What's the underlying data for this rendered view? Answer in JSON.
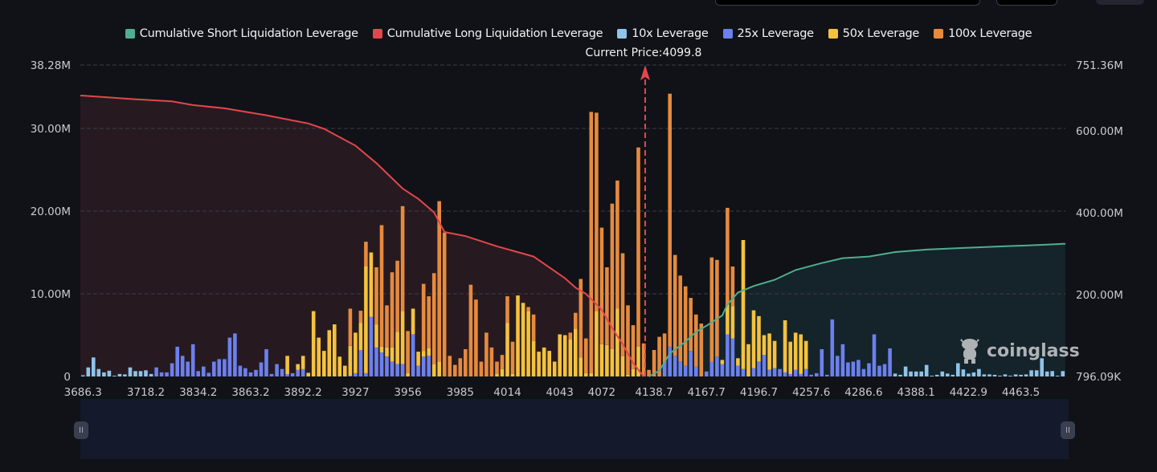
{
  "legend": [
    {
      "label": "Cumulative Short Liquidation Leverage",
      "color": "#4fae8f"
    },
    {
      "label": "Cumulative Long Liquidation Leverage",
      "color": "#e3474b"
    },
    {
      "label": "10x Leverage",
      "color": "#8ec3ea"
    },
    {
      "label": "25x Leverage",
      "color": "#6c80ee"
    },
    {
      "label": "50x Leverage",
      "color": "#f4c23e"
    },
    {
      "label": "100x Leverage",
      "color": "#e68a3e"
    }
  ],
  "current_price_label": "Current Price:4099.8",
  "watermark": "coinglass",
  "slider": {
    "handle_left": "II",
    "handle_right": "II"
  },
  "chart_data": {
    "type": "bar",
    "stacked": true,
    "grid": true,
    "legend_position": "top",
    "current_price": 4099.8,
    "xtick_labels": [
      "3686.3",
      "3718.2",
      "3834.2",
      "3863.2",
      "3892.2",
      "3927",
      "3956",
      "3985",
      "4014",
      "4043",
      "4072",
      "4138.7",
      "4167.7",
      "4196.7",
      "4257.6",
      "4286.6",
      "4388.1",
      "4422.9",
      "4463.5"
    ],
    "y_left": {
      "ticks": [
        0,
        10,
        20,
        30,
        38.28
      ],
      "tick_labels": [
        "0",
        "10.00M",
        "20.00M",
        "30.00M",
        "38.28M"
      ],
      "unit": "M",
      "range": [
        0,
        38.28
      ]
    },
    "y_right": {
      "ticks": [
        0.796,
        200,
        400,
        600,
        751.36
      ],
      "tick_labels": [
        "796.09K",
        "200.00M",
        "400.00M",
        "600.00M",
        "751.36M"
      ],
      "unit": "M",
      "range": [
        0.796,
        751.36
      ]
    },
    "stack_order": [
      "10x Leverage",
      "25x Leverage",
      "50x Leverage",
      "100x Leverage"
    ],
    "bars": [
      [
        0.15,
        0,
        0,
        0
      ],
      [
        1.1,
        0,
        0,
        0
      ],
      [
        2.3,
        0,
        0,
        0
      ],
      [
        0.9,
        0,
        0,
        0
      ],
      [
        0.5,
        0,
        0,
        0
      ],
      [
        0.7,
        0,
        0,
        0
      ],
      [
        0.1,
        0,
        0,
        0
      ],
      [
        0.3,
        0,
        0,
        0
      ],
      [
        0.25,
        0,
        0,
        0
      ],
      [
        1.1,
        0,
        0,
        0
      ],
      [
        0.65,
        0,
        0,
        0
      ],
      [
        0.65,
        0,
        0,
        0
      ],
      [
        0.75,
        0,
        0,
        0
      ],
      [
        0.3,
        0,
        0,
        0
      ],
      [
        0,
        1.1,
        0,
        0
      ],
      [
        0,
        0.5,
        0,
        0
      ],
      [
        0,
        0.5,
        0,
        0
      ],
      [
        0,
        1.6,
        0,
        0
      ],
      [
        0,
        3.6,
        0,
        0
      ],
      [
        0,
        2.5,
        0,
        0
      ],
      [
        0,
        1.8,
        0,
        0
      ],
      [
        0,
        3.9,
        0,
        0
      ],
      [
        0,
        0.65,
        0,
        0
      ],
      [
        0,
        1.2,
        0,
        0
      ],
      [
        0,
        0.45,
        0,
        0
      ],
      [
        0,
        1.8,
        0,
        0
      ],
      [
        0,
        2.1,
        0,
        0
      ],
      [
        0,
        2.1,
        0,
        0
      ],
      [
        0,
        4.7,
        0,
        0
      ],
      [
        0,
        5.2,
        0,
        0
      ],
      [
        0,
        1.3,
        0,
        0
      ],
      [
        0,
        1.0,
        0,
        0
      ],
      [
        0,
        0.5,
        0,
        0
      ],
      [
        0,
        0.8,
        0,
        0
      ],
      [
        0,
        1.7,
        0,
        0
      ],
      [
        0,
        3.3,
        0,
        0
      ],
      [
        0,
        0.3,
        0,
        0
      ],
      [
        0,
        1.5,
        0,
        0
      ],
      [
        0,
        0.9,
        0,
        0
      ],
      [
        0,
        0.3,
        2.2,
        0
      ],
      [
        0,
        0.4,
        0,
        0
      ],
      [
        0,
        0.8,
        0.7,
        0
      ],
      [
        0,
        0.9,
        1.6,
        0
      ],
      [
        0,
        0,
        0.45,
        0
      ],
      [
        0,
        0,
        7.9,
        0
      ],
      [
        0,
        0,
        4.7,
        0
      ],
      [
        0,
        0,
        3.1,
        0
      ],
      [
        0,
        0,
        5.6,
        0
      ],
      [
        0,
        0,
        6.3,
        0
      ],
      [
        0,
        0,
        2.4,
        0
      ],
      [
        0,
        0,
        1.3,
        0
      ],
      [
        0,
        0.1,
        3.6,
        4.5
      ],
      [
        0,
        0.4,
        4.9,
        0
      ],
      [
        0,
        3.2,
        3.3,
        1.45
      ],
      [
        0,
        0.4,
        12.9,
        3.0
      ],
      [
        0,
        7.2,
        7.8,
        0
      ],
      [
        0,
        3.5,
        2.8,
        6.9
      ],
      [
        0,
        2.9,
        0.7,
        14.7
      ],
      [
        0,
        2.4,
        1.1,
        5.1
      ],
      [
        0,
        1.8,
        1.7,
        9.1
      ],
      [
        0,
        1.5,
        3.9,
        8.6
      ],
      [
        0,
        1.5,
        6.4,
        12.7
      ],
      [
        0,
        0,
        0.4,
        5.1
      ],
      [
        0,
        5.1,
        3.1,
        0
      ],
      [
        0,
        1.3,
        1.7,
        0
      ],
      [
        0,
        2.4,
        0.7,
        8.1
      ],
      [
        0,
        2.5,
        0.9,
        6.3
      ],
      [
        0,
        0,
        1.5,
        11.0
      ],
      [
        0,
        0,
        1.8,
        19.4
      ],
      [
        0,
        0,
        0,
        17.4
      ],
      [
        0,
        0,
        0,
        2.5
      ],
      [
        0,
        0,
        0,
        1.4
      ],
      [
        0,
        0,
        0,
        2.2
      ],
      [
        0,
        0,
        0,
        3.3
      ],
      [
        0,
        0,
        0,
        11.1
      ],
      [
        0,
        0,
        0,
        9.3
      ],
      [
        0,
        0,
        0,
        1.8
      ],
      [
        0,
        0,
        0,
        5.3
      ],
      [
        0,
        0,
        0,
        3.5
      ],
      [
        0,
        0,
        0.3,
        1.5
      ],
      [
        0,
        0,
        0.9,
        1.7
      ],
      [
        0,
        0,
        6.5,
        3.2
      ],
      [
        0,
        0,
        0.3,
        3.9
      ],
      [
        0,
        0,
        9.8,
        0
      ],
      [
        0,
        0,
        8.9,
        0
      ],
      [
        0,
        0,
        7.9,
        0.5
      ],
      [
        0,
        0,
        4.3,
        3.2
      ],
      [
        0,
        0,
        3.0,
        0
      ],
      [
        0,
        0,
        3.5,
        0
      ],
      [
        0,
        0,
        3.1,
        0
      ],
      [
        0,
        0,
        1.8,
        0
      ],
      [
        0,
        0,
        5.1,
        0
      ],
      [
        0,
        0,
        5.0,
        0
      ],
      [
        0,
        0,
        4.5,
        0.8
      ],
      [
        0,
        0,
        5.8,
        1.9
      ],
      [
        0,
        0,
        2.3,
        9.5
      ],
      [
        0,
        0,
        0.4,
        4.2
      ],
      [
        0,
        0,
        0.4,
        31.6
      ],
      [
        0,
        0,
        7.9,
        24.0
      ],
      [
        0,
        0,
        3.9,
        14.1
      ],
      [
        0,
        0,
        3.8,
        9.4
      ],
      [
        0,
        0,
        3.3,
        17.6
      ],
      [
        0,
        0,
        8.2,
        15.5
      ],
      [
        0,
        0,
        2.5,
        12.4
      ],
      [
        0,
        0,
        0.2,
        8.4
      ],
      [
        0,
        0,
        0.9,
        5.3
      ],
      [
        0,
        0,
        3.6,
        24.1
      ],
      [
        0,
        0,
        0,
        4.0
      ],
      [
        0,
        0,
        0,
        0.8
      ],
      [
        0,
        0,
        0,
        3.2
      ],
      [
        0,
        0,
        0,
        4.8
      ],
      [
        0,
        1.7,
        0,
        3.5
      ],
      [
        0,
        3.6,
        0,
        30.6
      ],
      [
        0,
        2.5,
        0,
        12.2
      ],
      [
        0,
        1.8,
        0,
        10.4
      ],
      [
        0,
        1.3,
        0,
        9.6
      ],
      [
        0,
        3.1,
        0,
        6.4
      ],
      [
        0,
        1.2,
        0,
        6.3
      ],
      [
        0,
        0,
        0,
        6.4
      ],
      [
        0,
        0.6,
        0,
        0
      ],
      [
        0,
        1.8,
        0,
        12.6
      ],
      [
        0,
        2.4,
        0,
        11.7
      ],
      [
        0,
        1.5,
        0.5,
        0
      ],
      [
        0,
        5.1,
        3.6,
        11.7
      ],
      [
        0,
        4.6,
        3.9,
        4.8
      ],
      [
        0,
        1.3,
        0.9,
        0
      ],
      [
        0,
        0.9,
        15.6,
        0
      ],
      [
        0,
        0,
        3.9,
        0
      ],
      [
        0,
        1.0,
        7.0,
        0
      ],
      [
        0,
        1.8,
        5.5,
        0
      ],
      [
        0,
        2.6,
        2.4,
        0
      ],
      [
        0,
        0.8,
        4.4,
        0
      ],
      [
        0,
        1.0,
        3.3,
        0
      ],
      [
        0,
        0.9,
        0,
        0
      ],
      [
        0,
        0.5,
        6.3,
        0
      ],
      [
        0,
        0.3,
        3.9,
        0
      ],
      [
        0,
        0.8,
        4.5,
        0
      ],
      [
        0,
        0.3,
        4.8,
        0
      ],
      [
        0,
        0.9,
        3.4,
        0
      ],
      [
        0,
        0.2,
        0,
        0
      ],
      [
        0,
        0.4,
        0,
        0
      ],
      [
        0,
        3.3,
        0,
        0
      ],
      [
        0,
        0.2,
        0,
        0
      ],
      [
        0,
        6.9,
        0,
        0
      ],
      [
        0,
        2.5,
        0,
        0
      ],
      [
        0,
        3.9,
        0,
        0
      ],
      [
        0,
        1.7,
        0,
        0
      ],
      [
        0,
        1.8,
        0,
        0
      ],
      [
        0,
        2.0,
        0,
        0
      ],
      [
        0,
        0.9,
        0,
        0
      ],
      [
        0,
        1.6,
        0,
        0
      ],
      [
        0,
        5.1,
        0,
        0
      ],
      [
        0,
        1.3,
        0,
        0
      ],
      [
        0,
        1.5,
        0,
        0
      ],
      [
        0,
        3.4,
        0,
        0
      ],
      [
        0.35,
        0,
        0,
        0
      ],
      [
        0.2,
        0,
        0,
        0
      ],
      [
        1.2,
        0,
        0,
        0
      ],
      [
        0.6,
        0,
        0,
        0
      ],
      [
        0.6,
        0,
        0,
        0
      ],
      [
        0.6,
        0,
        0,
        0
      ],
      [
        1.4,
        0,
        0,
        0
      ],
      [
        0.1,
        0,
        0,
        0
      ],
      [
        0.2,
        0,
        0,
        0
      ],
      [
        0.6,
        0,
        0,
        0
      ],
      [
        0.35,
        0,
        0,
        0
      ],
      [
        0.2,
        0,
        0,
        0
      ],
      [
        1.6,
        0,
        0,
        0
      ],
      [
        0.85,
        0,
        0,
        0
      ],
      [
        0.35,
        0,
        0,
        0
      ],
      [
        0.5,
        0,
        0,
        0
      ],
      [
        0.9,
        0,
        0,
        0
      ],
      [
        0.25,
        0,
        0,
        0
      ],
      [
        0.25,
        0,
        0,
        0
      ],
      [
        0.2,
        0,
        0,
        0
      ],
      [
        0.1,
        0,
        0,
        0
      ],
      [
        0.25,
        0,
        0,
        0
      ],
      [
        0.1,
        0,
        0,
        0
      ],
      [
        0.25,
        0,
        0,
        0
      ],
      [
        0.2,
        0,
        0,
        0
      ],
      [
        0.25,
        0,
        0,
        0
      ],
      [
        0.75,
        0,
        0,
        0
      ],
      [
        0.75,
        0,
        0,
        0
      ],
      [
        2.2,
        0,
        0,
        0
      ],
      [
        0.6,
        0,
        0,
        0
      ],
      [
        0.65,
        0,
        0,
        0
      ],
      [
        0.1,
        0,
        0,
        0
      ],
      [
        0.65,
        0,
        0,
        0
      ]
    ],
    "cumulative_long": {
      "name": "Cumulative Long Liquidation Leverage",
      "axis": "right",
      "points": [
        [
          0,
          686
        ],
        [
          9,
          678
        ],
        [
          17,
          672
        ],
        [
          21,
          663
        ],
        [
          27,
          655
        ],
        [
          35,
          638
        ],
        [
          43,
          618
        ],
        [
          46,
          605
        ],
        [
          52,
          564
        ],
        [
          56,
          521
        ],
        [
          61,
          459
        ],
        [
          64,
          434
        ],
        [
          67,
          401
        ],
        [
          69,
          353
        ],
        [
          73,
          343
        ],
        [
          79,
          318
        ],
        [
          86,
          293
        ],
        [
          92,
          240
        ],
        [
          94,
          217
        ],
        [
          96,
          202
        ],
        [
          99,
          163
        ],
        [
          101,
          118
        ],
        [
          103,
          79
        ],
        [
          105,
          33
        ],
        [
          107,
          0
        ]
      ]
    },
    "cumulative_short": {
      "name": "Cumulative Short Liquidation Leverage",
      "axis": "right",
      "points": [
        [
          108,
          0
        ],
        [
          110,
          14
        ],
        [
          112,
          56
        ],
        [
          115,
          85
        ],
        [
          117,
          109
        ],
        [
          119,
          124
        ],
        [
          122,
          149
        ],
        [
          123,
          176
        ],
        [
          125,
          205
        ],
        [
          128,
          221
        ],
        [
          132,
          236
        ],
        [
          136,
          260
        ],
        [
          141,
          277
        ],
        [
          145,
          289
        ],
        [
          150,
          293
        ],
        [
          155,
          304
        ],
        [
          161,
          310
        ],
        [
          168,
          314
        ],
        [
          176,
          318
        ],
        [
          184,
          322
        ],
        [
          187,
          324
        ]
      ]
    }
  }
}
